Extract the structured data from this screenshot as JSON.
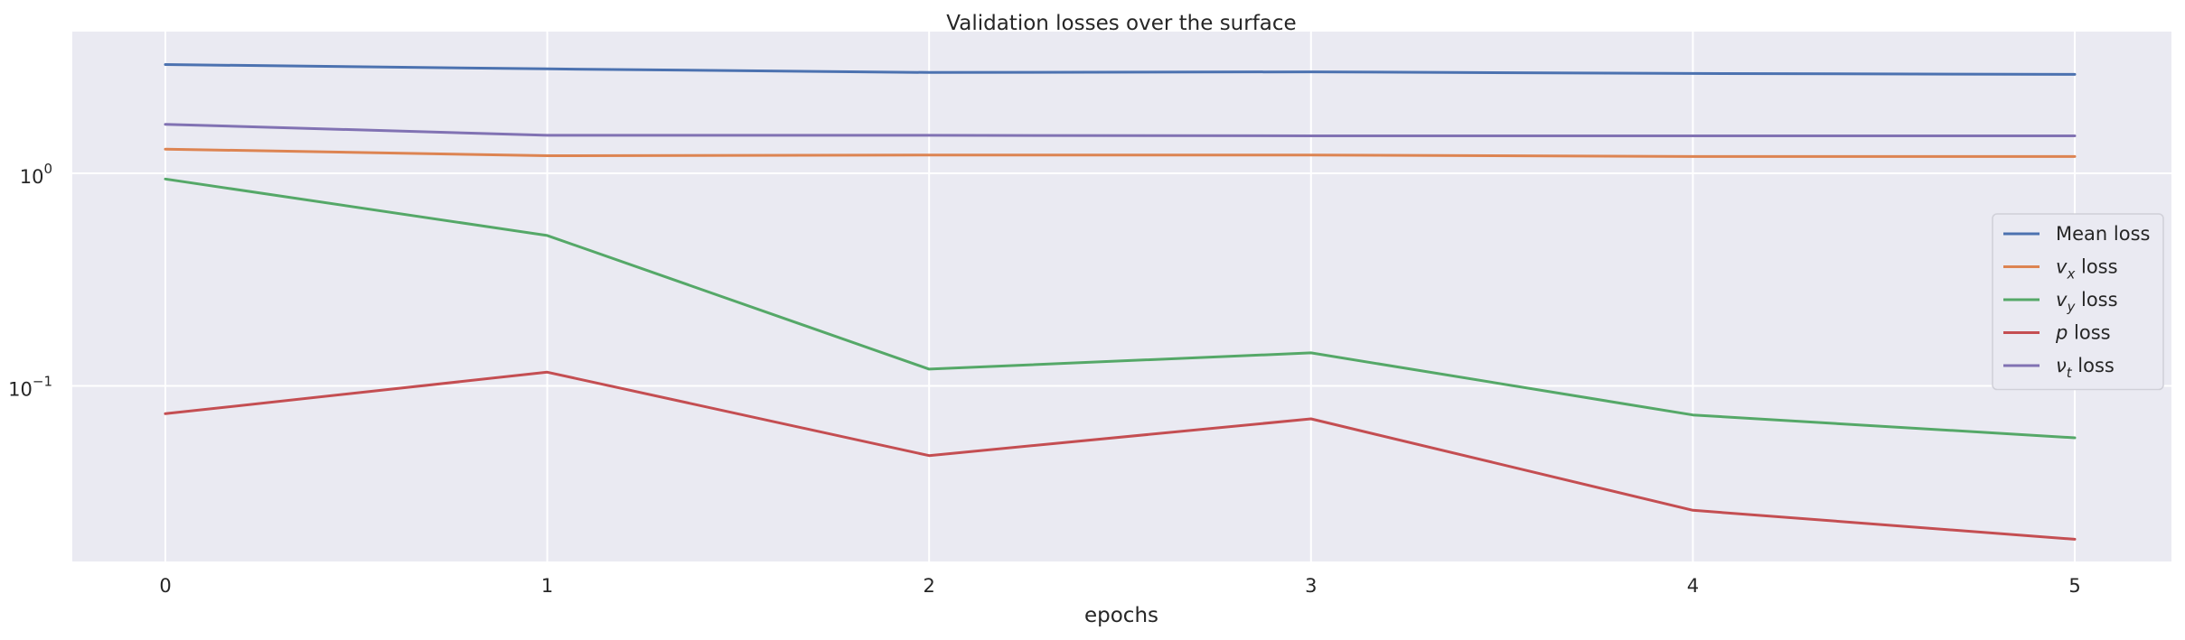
{
  "chart_data": {
    "type": "line",
    "title": "Validation losses over the surface",
    "xlabel": "epochs",
    "ylabel": "",
    "yscale": "log",
    "grid": true,
    "legend_position": "center-right",
    "x": [
      0,
      1,
      2,
      3,
      4,
      5
    ],
    "xticks": [
      "0",
      "1",
      "2",
      "3",
      "4",
      "5"
    ],
    "yticks": [
      {
        "value": 1,
        "base": "10",
        "exp": "0"
      },
      {
        "value": 0.1,
        "base": "10",
        "exp": "−1"
      }
    ],
    "series": [
      {
        "name": "Mean loss",
        "var": "",
        "sub": "",
        "suffix": "Mean loss",
        "color": "#4c72b0",
        "values": [
          3.25,
          3.1,
          2.98,
          3.0,
          2.95,
          2.92
        ]
      },
      {
        "name": "v_x loss",
        "var": "v",
        "sub": "x",
        "suffix": " loss",
        "color": "#dd8452",
        "values": [
          1.3,
          1.21,
          1.22,
          1.22,
          1.2,
          1.2
        ]
      },
      {
        "name": "v_y loss",
        "var": "v",
        "sub": "y",
        "suffix": " loss",
        "color": "#55a868",
        "values": [
          0.94,
          0.51,
          0.12,
          0.143,
          0.073,
          0.057
        ]
      },
      {
        "name": "p loss",
        "var": "p",
        "sub": "",
        "suffix": " loss",
        "color": "#c44e52",
        "values": [
          0.074,
          0.116,
          0.047,
          0.07,
          0.026,
          0.019
        ]
      },
      {
        "name": "ν_t loss",
        "var": "ν",
        "sub": "t",
        "suffix": " loss",
        "color": "#8172b3",
        "values": [
          1.7,
          1.51,
          1.51,
          1.5,
          1.5,
          1.5
        ]
      }
    ]
  }
}
